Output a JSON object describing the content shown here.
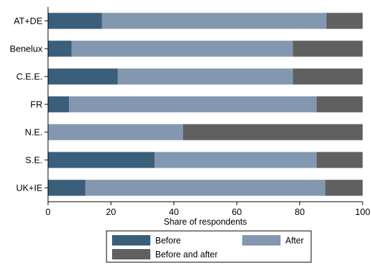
{
  "chart_data": {
    "type": "bar",
    "orientation": "horizontal",
    "stacked": true,
    "categories": [
      "AT+DE",
      "Benelux",
      "C.E.E.",
      "FR",
      "N.E.",
      "S.E.",
      "UK+IE"
    ],
    "series": [
      {
        "name": "Before",
        "color": "#3b5f7a",
        "values": [
          17.2,
          7.5,
          22.2,
          6.7,
          0.0,
          33.9,
          11.9
        ]
      },
      {
        "name": "After",
        "color": "#8398b0",
        "values": [
          71.3,
          70.3,
          55.6,
          78.7,
          42.9,
          51.5,
          76.2
        ]
      },
      {
        "name": "Before and after",
        "color": "#606060",
        "values": [
          11.5,
          22.2,
          22.2,
          14.6,
          57.1,
          14.6,
          11.9
        ]
      }
    ],
    "xlabel": "Share of respondents",
    "ylabel": "",
    "xlim": [
      0,
      100
    ],
    "xticks": [
      0,
      20,
      40,
      60,
      80,
      100
    ],
    "grid": false,
    "legend_position": "bottom"
  }
}
